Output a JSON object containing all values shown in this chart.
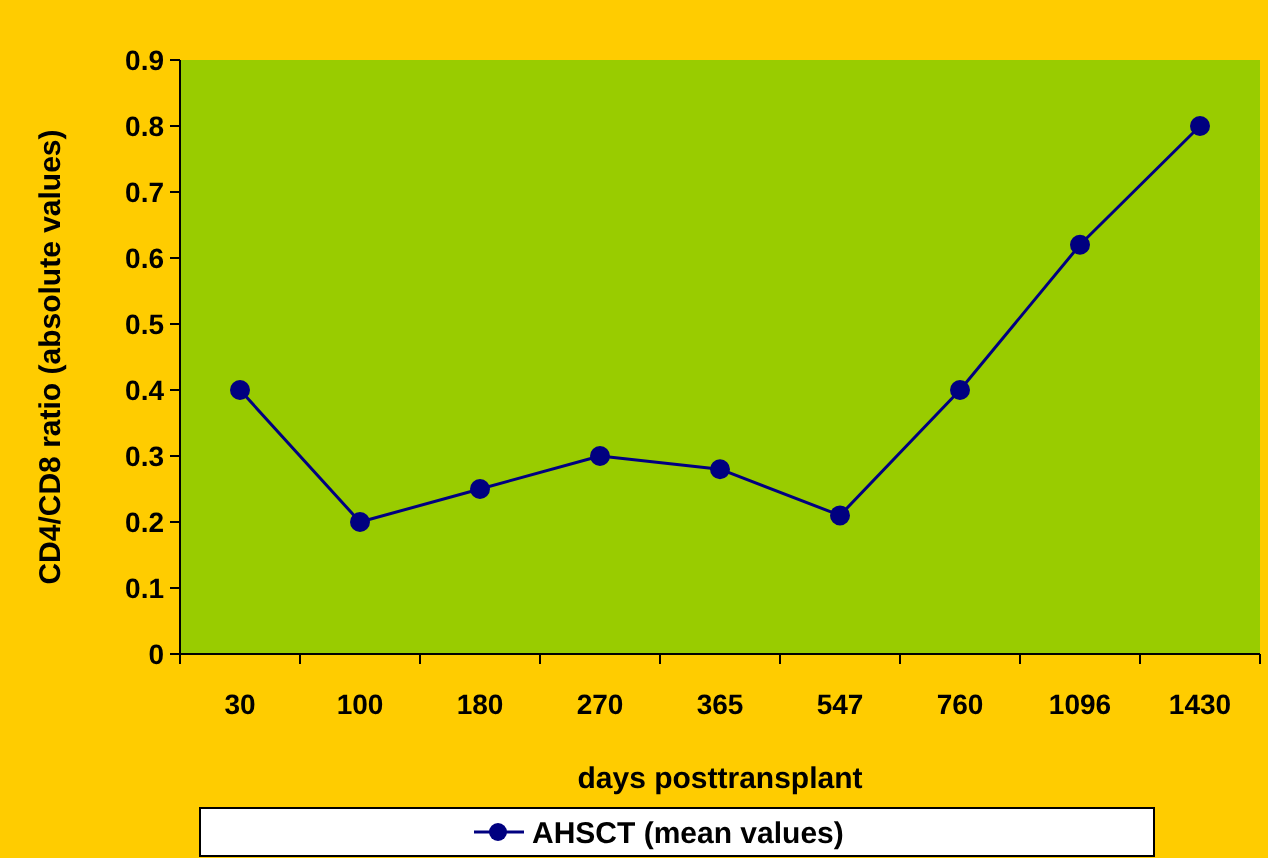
{
  "chart_data": {
    "type": "line",
    "xlabel": "days posttransplant",
    "ylabel": "CD4/CD8 ratio (absolute values)",
    "categories": [
      "30",
      "100",
      "180",
      "270",
      "365",
      "547",
      "760",
      "1096",
      "1430"
    ],
    "series": [
      {
        "name": "AHSCT (mean values)",
        "color": "#000080",
        "values": [
          0.4,
          0.2,
          0.25,
          0.3,
          0.28,
          0.21,
          0.4,
          0.62,
          0.8
        ]
      }
    ],
    "ylim": [
      0,
      0.9
    ],
    "yticks": [
      0,
      0.1,
      0.2,
      0.3,
      0.4,
      0.5,
      0.6,
      0.7,
      0.8,
      0.9
    ],
    "grid": false,
    "legend": "bottom",
    "marker": "circle",
    "line_style": "solid"
  }
}
